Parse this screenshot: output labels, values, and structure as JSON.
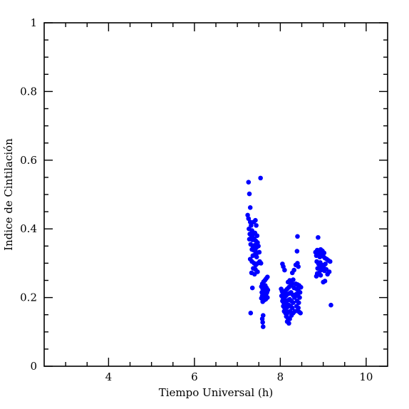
{
  "chart_data": {
    "type": "scatter",
    "xlabel": "Tiempo Universal (h)",
    "ylabel": "Indice de Cintilación",
    "xlim": [
      2.5,
      10.5
    ],
    "ylim": [
      0,
      1
    ],
    "x_ticks": [
      4,
      6,
      8,
      10
    ],
    "x_tick_labels": [
      "4",
      "6",
      "8",
      "10"
    ],
    "y_ticks": [
      0,
      0.2,
      0.4,
      0.6,
      0.8,
      1
    ],
    "y_tick_labels": [
      "0",
      "0.2",
      "0.4",
      "0.6",
      "0.8",
      "1"
    ],
    "grid": false,
    "marker_color": "#0000ff",
    "points": [
      [
        7.26,
        0.536
      ],
      [
        7.28,
        0.502
      ],
      [
        7.3,
        0.462
      ],
      [
        7.24,
        0.44
      ],
      [
        7.26,
        0.43
      ],
      [
        7.3,
        0.42
      ],
      [
        7.32,
        0.41
      ],
      [
        7.27,
        0.4
      ],
      [
        7.34,
        0.395
      ],
      [
        7.38,
        0.42
      ],
      [
        7.42,
        0.425
      ],
      [
        7.44,
        0.41
      ],
      [
        7.29,
        0.385
      ],
      [
        7.33,
        0.38
      ],
      [
        7.37,
        0.385
      ],
      [
        7.41,
        0.388
      ],
      [
        7.46,
        0.38
      ],
      [
        7.28,
        0.37
      ],
      [
        7.35,
        0.368
      ],
      [
        7.39,
        0.372
      ],
      [
        7.43,
        0.365
      ],
      [
        7.47,
        0.36
      ],
      [
        7.31,
        0.355
      ],
      [
        7.36,
        0.35
      ],
      [
        7.4,
        0.352
      ],
      [
        7.44,
        0.345
      ],
      [
        7.49,
        0.35
      ],
      [
        7.34,
        0.34
      ],
      [
        7.38,
        0.338
      ],
      [
        7.42,
        0.335
      ],
      [
        7.46,
        0.33
      ],
      [
        7.51,
        0.332
      ],
      [
        7.36,
        0.322
      ],
      [
        7.41,
        0.325
      ],
      [
        7.45,
        0.318
      ],
      [
        7.3,
        0.312
      ],
      [
        7.34,
        0.305
      ],
      [
        7.39,
        0.3
      ],
      [
        7.43,
        0.295
      ],
      [
        7.48,
        0.3
      ],
      [
        7.52,
        0.305
      ],
      [
        7.37,
        0.285
      ],
      [
        7.42,
        0.282
      ],
      [
        7.33,
        0.272
      ],
      [
        7.4,
        0.268
      ],
      [
        7.47,
        0.275
      ],
      [
        7.35,
        0.228
      ],
      [
        7.31,
        0.155
      ],
      [
        7.54,
        0.548
      ],
      [
        7.55,
        0.3
      ],
      [
        7.56,
        0.232
      ],
      [
        7.58,
        0.24
      ],
      [
        7.61,
        0.246
      ],
      [
        7.64,
        0.25
      ],
      [
        7.67,
        0.255
      ],
      [
        7.7,
        0.26
      ],
      [
        7.59,
        0.225
      ],
      [
        7.62,
        0.23
      ],
      [
        7.65,
        0.235
      ],
      [
        7.68,
        0.228
      ],
      [
        7.71,
        0.222
      ],
      [
        7.57,
        0.215
      ],
      [
        7.6,
        0.218
      ],
      [
        7.63,
        0.212
      ],
      [
        7.66,
        0.22
      ],
      [
        7.69,
        0.215
      ],
      [
        7.58,
        0.205
      ],
      [
        7.61,
        0.2
      ],
      [
        7.64,
        0.205
      ],
      [
        7.67,
        0.21
      ],
      [
        7.7,
        0.2
      ],
      [
        7.62,
        0.192
      ],
      [
        7.66,
        0.195
      ],
      [
        7.56,
        0.198
      ],
      [
        7.59,
        0.188
      ],
      [
        7.6,
        0.148
      ],
      [
        7.58,
        0.138
      ],
      [
        7.59,
        0.128
      ],
      [
        7.6,
        0.115
      ],
      [
        8.02,
        0.225
      ],
      [
        8.05,
        0.298
      ],
      [
        8.07,
        0.29
      ],
      [
        8.1,
        0.28
      ],
      [
        8.04,
        0.218
      ],
      [
        8.08,
        0.212
      ],
      [
        8.12,
        0.22
      ],
      [
        8.16,
        0.225
      ],
      [
        8.2,
        0.23
      ],
      [
        8.24,
        0.235
      ],
      [
        8.28,
        0.24
      ],
      [
        8.32,
        0.228
      ],
      [
        8.03,
        0.205
      ],
      [
        8.06,
        0.2
      ],
      [
        8.09,
        0.198
      ],
      [
        8.13,
        0.205
      ],
      [
        8.17,
        0.21
      ],
      [
        8.21,
        0.212
      ],
      [
        8.25,
        0.215
      ],
      [
        8.29,
        0.208
      ],
      [
        8.33,
        0.2
      ],
      [
        8.05,
        0.19
      ],
      [
        8.08,
        0.185
      ],
      [
        8.11,
        0.182
      ],
      [
        8.14,
        0.188
      ],
      [
        8.18,
        0.192
      ],
      [
        8.22,
        0.195
      ],
      [
        8.26,
        0.19
      ],
      [
        8.3,
        0.185
      ],
      [
        8.07,
        0.175
      ],
      [
        8.1,
        0.17
      ],
      [
        8.13,
        0.168
      ],
      [
        8.16,
        0.172
      ],
      [
        8.2,
        0.178
      ],
      [
        8.24,
        0.175
      ],
      [
        8.28,
        0.17
      ],
      [
        8.09,
        0.16
      ],
      [
        8.12,
        0.155
      ],
      [
        8.15,
        0.152
      ],
      [
        8.19,
        0.158
      ],
      [
        8.23,
        0.16
      ],
      [
        8.14,
        0.145
      ],
      [
        8.18,
        0.14
      ],
      [
        8.22,
        0.138
      ],
      [
        8.16,
        0.13
      ],
      [
        8.2,
        0.125
      ],
      [
        8.26,
        0.148
      ],
      [
        8.3,
        0.155
      ],
      [
        8.34,
        0.16
      ],
      [
        8.18,
        0.245
      ],
      [
        8.22,
        0.25
      ],
      [
        8.26,
        0.245
      ],
      [
        8.3,
        0.252
      ],
      [
        8.28,
        0.272
      ],
      [
        8.32,
        0.28
      ],
      [
        8.36,
        0.295
      ],
      [
        8.4,
        0.3
      ],
      [
        8.42,
        0.29
      ],
      [
        8.39,
        0.335
      ],
      [
        8.4,
        0.378
      ],
      [
        8.36,
        0.24
      ],
      [
        8.4,
        0.238
      ],
      [
        8.44,
        0.235
      ],
      [
        8.48,
        0.23
      ],
      [
        8.38,
        0.225
      ],
      [
        8.42,
        0.22
      ],
      [
        8.46,
        0.215
      ],
      [
        8.37,
        0.21
      ],
      [
        8.41,
        0.205
      ],
      [
        8.45,
        0.2
      ],
      [
        8.39,
        0.19
      ],
      [
        8.43,
        0.185
      ],
      [
        8.38,
        0.175
      ],
      [
        8.42,
        0.17
      ],
      [
        8.4,
        0.162
      ],
      [
        8.44,
        0.158
      ],
      [
        8.47,
        0.155
      ],
      [
        8.82,
        0.332
      ],
      [
        8.86,
        0.338
      ],
      [
        8.9,
        0.335
      ],
      [
        8.94,
        0.34
      ],
      [
        8.98,
        0.336
      ],
      [
        9.02,
        0.33
      ],
      [
        8.84,
        0.322
      ],
      [
        8.88,
        0.325
      ],
      [
        8.92,
        0.318
      ],
      [
        8.96,
        0.325
      ],
      [
        9.0,
        0.32
      ],
      [
        9.04,
        0.315
      ],
      [
        9.08,
        0.312
      ],
      [
        9.12,
        0.308
      ],
      [
        8.88,
        0.375
      ],
      [
        8.85,
        0.305
      ],
      [
        8.89,
        0.298
      ],
      [
        8.93,
        0.302
      ],
      [
        8.97,
        0.295
      ],
      [
        9.01,
        0.292
      ],
      [
        9.05,
        0.298
      ],
      [
        8.87,
        0.285
      ],
      [
        8.91,
        0.288
      ],
      [
        8.95,
        0.28
      ],
      [
        8.99,
        0.283
      ],
      [
        9.03,
        0.278
      ],
      [
        9.07,
        0.282
      ],
      [
        8.86,
        0.27
      ],
      [
        8.9,
        0.272
      ],
      [
        8.94,
        0.265
      ],
      [
        9.1,
        0.268
      ],
      [
        9.14,
        0.275
      ],
      [
        8.84,
        0.262
      ],
      [
        9.0,
        0.245
      ],
      [
        9.04,
        0.248
      ],
      [
        9.16,
        0.305
      ],
      [
        9.18,
        0.178
      ]
    ]
  }
}
